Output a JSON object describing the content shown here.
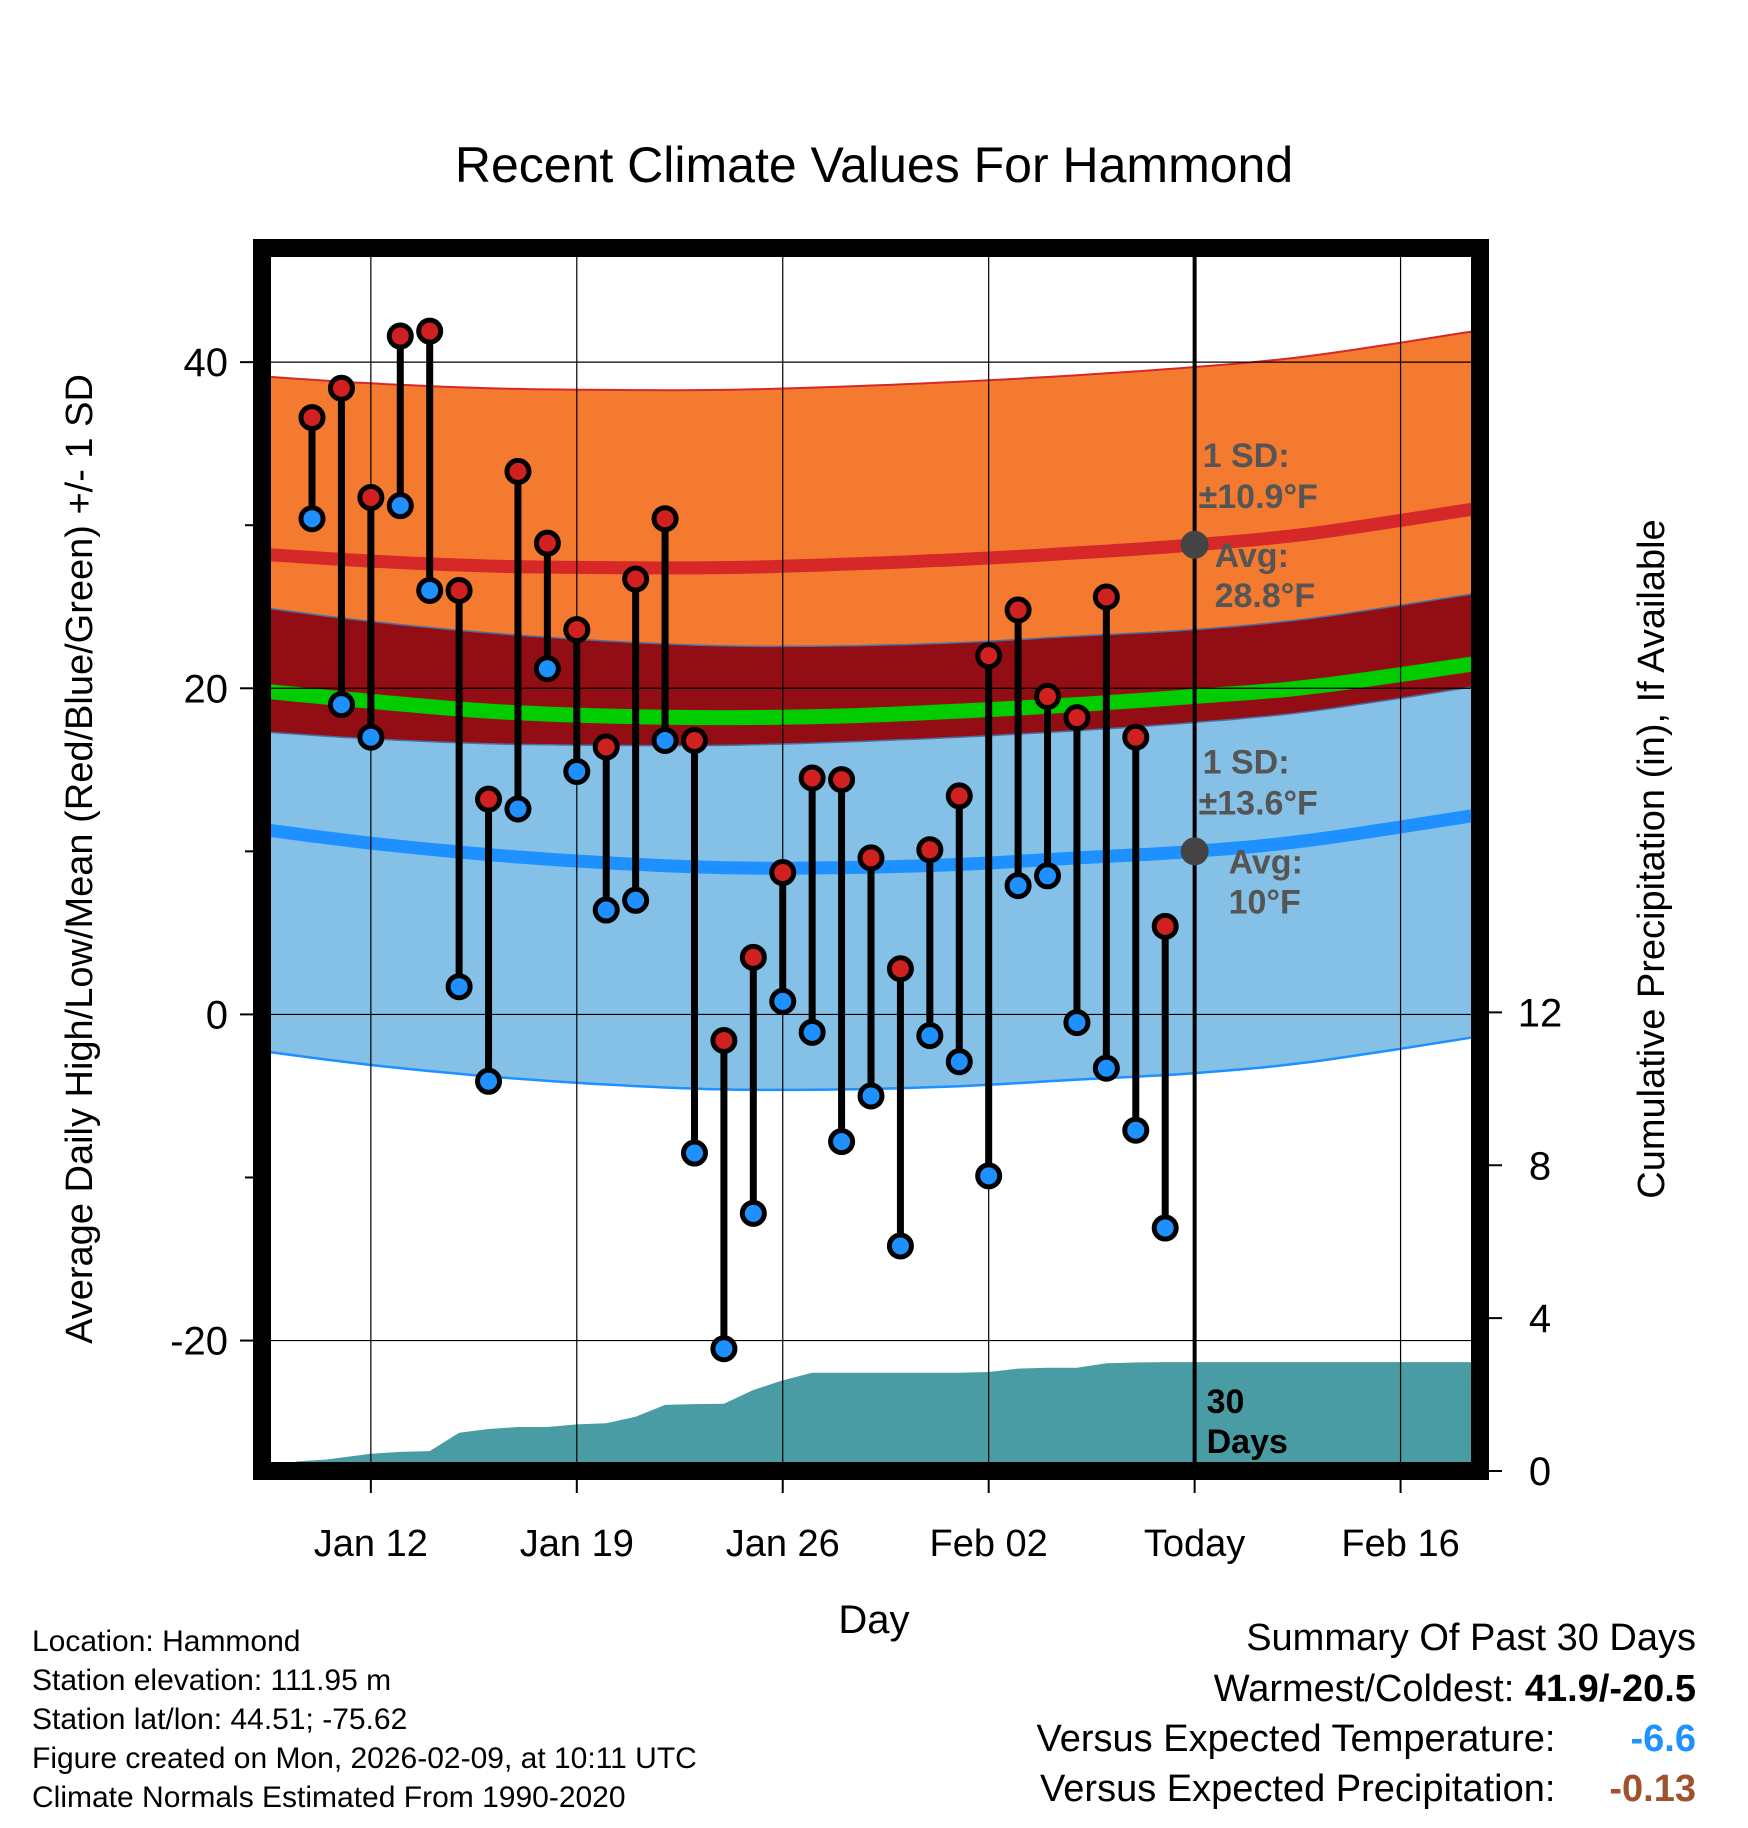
{
  "chart_data": {
    "type": "line",
    "title": "Recent Climate Values For Hammond",
    "xlabel": "Day",
    "ylabel": "Average Daily High/Low/Mean (Red/Blue/Green) +/- 1 SD",
    "y2label": "Cumulative Precipitation (in), If Available",
    "ylim": [
      -28,
      47
    ],
    "y2lim": [
      0,
      32
    ],
    "xlim": [
      -31.7,
      9.7
    ],
    "today_index": 0,
    "x_ticks": [
      {
        "day": -28,
        "label": "Jan 12"
      },
      {
        "day": -21,
        "label": "Jan 19"
      },
      {
        "day": -14,
        "label": "Jan 26"
      },
      {
        "day": -7,
        "label": "Feb 02"
      },
      {
        "day": 0,
        "label": "Today"
      },
      {
        "day": 7,
        "label": "Feb 16"
      }
    ],
    "y_ticks": [
      {
        "value": 40,
        "label": "40"
      },
      {
        "value": 20,
        "label": "20"
      },
      {
        "value": 0,
        "label": "0"
      },
      {
        "value": -20,
        "label": "-20"
      }
    ],
    "y_minor_ticks": [
      30,
      10,
      -10
    ],
    "y2_ticks": [
      {
        "value": 0,
        "label": "0"
      },
      {
        "value": 4,
        "label": "4"
      },
      {
        "value": 8,
        "label": "8"
      },
      {
        "value": 12,
        "label": "12"
      }
    ],
    "normals": {
      "days": [
        -31.5,
        -28,
        -24,
        -20,
        -16,
        -12,
        -8,
        -4,
        0,
        4,
        9.5
      ],
      "high_avg": [
        28.2,
        27.8,
        27.5,
        27.4,
        27.4,
        27.6,
        27.9,
        28.3,
        28.8,
        29.5,
        31.0
      ],
      "high_sd": 10.9,
      "low_avg": [
        11.3,
        10.5,
        9.8,
        9.3,
        9.0,
        9.0,
        9.2,
        9.6,
        10.0,
        10.7,
        12.2
      ],
      "low_sd": 13.6,
      "mean_avg": [
        19.8,
        19.2,
        18.6,
        18.3,
        18.2,
        18.3,
        18.6,
        19.0,
        19.5,
        20.1,
        21.5
      ]
    },
    "observed": {
      "days": [
        -30,
        -29,
        -28,
        -27,
        -26,
        -25,
        -24,
        -23,
        -22,
        -21,
        -20,
        -19,
        -18,
        -17,
        -16,
        -15,
        -14,
        -13,
        -12,
        -11,
        -10,
        -9,
        -8,
        -7,
        -6,
        -5,
        -4,
        -3,
        -2,
        -1
      ],
      "highs": [
        36.6,
        38.4,
        31.7,
        41.6,
        41.9,
        26.0,
        13.2,
        33.3,
        28.9,
        23.6,
        16.4,
        26.7,
        30.4,
        16.8,
        -1.6,
        3.5,
        8.7,
        14.5,
        14.4,
        9.6,
        2.8,
        10.1,
        13.4,
        22.0,
        24.8,
        19.5,
        18.2,
        25.6,
        17.0,
        5.4
      ],
      "lows": [
        30.4,
        19.0,
        17.0,
        31.2,
        26.0,
        1.7,
        -4.1,
        12.6,
        21.2,
        14.9,
        6.4,
        7.0,
        16.8,
        -8.5,
        -20.5,
        -12.2,
        0.8,
        -1.1,
        -7.8,
        -5.0,
        -14.2,
        -1.3,
        -2.9,
        -9.9,
        7.9,
        8.5,
        -0.5,
        -3.3,
        -7.1,
        -13.1
      ]
    },
    "precipitation": {
      "days": [
        -31.3,
        -30.5,
        -29.5,
        -28,
        -27,
        -26,
        -25,
        -24,
        -23,
        -22,
        -21,
        -20,
        -19,
        -18,
        -17,
        -16,
        -15,
        -14,
        -13,
        -12,
        -11,
        -10,
        -9,
        -8,
        -7,
        -6,
        -5,
        -4,
        -3,
        -2,
        -1,
        0,
        9.7
      ],
      "cumulative": [
        0.05,
        0.25,
        0.3,
        0.45,
        0.5,
        0.52,
        1.0,
        1.1,
        1.15,
        1.15,
        1.22,
        1.25,
        1.42,
        1.73,
        1.75,
        1.76,
        2.12,
        2.37,
        2.57,
        2.57,
        2.57,
        2.57,
        2.57,
        2.57,
        2.59,
        2.68,
        2.7,
        2.7,
        2.82,
        2.84,
        2.85,
        2.85,
        2.85
      ]
    },
    "annotations": {
      "high_sd_label": "1 SD:",
      "high_sd_value": "±10.9°F",
      "high_avg_label": "Avg:",
      "high_avg_value": "28.8°F",
      "low_sd_label": "1 SD:",
      "low_sd_value": "±13.6°F",
      "low_avg_label": "Avg:",
      "low_avg_value": "10°F",
      "period_value": "30",
      "period_unit": "Days"
    },
    "colors": {
      "high_band": "#f47a30",
      "high_line": "#d62828",
      "low_band": "#85c1e6",
      "low_line": "#1e90ff",
      "overlap": "#930e14",
      "mean_line": "#00cc00",
      "precip": "#4a9ca4",
      "high_dot": "#d02020",
      "low_dot": "#1e90ff",
      "annotation": "#555555",
      "temp_anomaly": "#1e90ff",
      "precip_anomaly": "#a0522d"
    }
  },
  "info": {
    "location": "Location: Hammond",
    "elevation": "Station elevation: 111.95 m",
    "latlon": "Station lat/lon: 44.51; -75.62",
    "created": "Figure created on Mon, 2026-02-09, at 10:11 UTC",
    "normals": "Climate Normals Estimated From 1990-2020"
  },
  "summary": {
    "title": "Summary Of Past 30 Days",
    "extremes_label": "Warmest/Coldest:",
    "extremes_value": "41.9/-20.5",
    "temp_label": "Versus Expected Temperature:",
    "temp_value": "-6.6",
    "precip_label": "Versus Expected Precipitation:",
    "precip_value": "-0.13"
  }
}
